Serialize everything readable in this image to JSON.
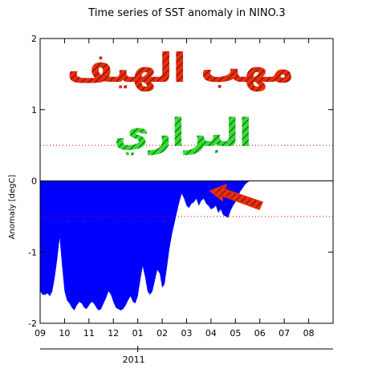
{
  "chart_data": {
    "type": "area",
    "title": "Time series of SST anomaly in NINO.3",
    "ylabel": "Anomaly [degC]",
    "xlabel": "",
    "year_label": "2011",
    "ylim": [
      -2,
      2
    ],
    "yticks": [
      -2,
      -1,
      0,
      1,
      2
    ],
    "month_ticks": [
      "09",
      "10",
      "11",
      "12",
      "01",
      "02",
      "03",
      "04",
      "05",
      "06",
      "07",
      "08"
    ],
    "threshold_lines": [
      0.5,
      -0.5
    ],
    "grid": false,
    "series": [
      {
        "x": [
          0.0,
          0.1,
          0.2,
          0.3,
          0.4,
          0.5,
          0.6,
          0.7,
          0.8,
          0.9,
          1.0,
          1.1,
          1.2,
          1.3,
          1.4,
          1.5,
          1.6,
          1.7,
          1.8,
          1.9,
          2.0,
          2.1,
          2.2,
          2.3,
          2.4,
          2.5,
          2.6,
          2.7,
          2.8,
          2.9,
          3.0,
          3.1,
          3.2,
          3.3,
          3.4,
          3.5,
          3.6,
          3.7,
          3.8,
          3.9,
          4.0,
          4.1,
          4.2,
          4.3,
          4.4,
          4.5,
          4.6,
          4.7,
          4.8,
          4.9,
          5.0,
          5.1,
          5.2,
          5.3,
          5.4,
          5.5,
          5.6,
          5.7,
          5.8,
          5.9,
          6.0,
          6.1,
          6.2,
          6.3,
          6.4,
          6.5,
          6.6,
          6.7,
          6.8,
          6.9,
          7.0,
          7.1,
          7.2,
          7.3,
          7.4,
          7.5,
          7.6,
          7.7,
          7.8,
          7.9,
          8.0,
          8.1,
          8.2,
          8.3,
          8.4,
          8.5,
          8.6
        ],
        "values": [
          -1.55,
          -1.6,
          -1.6,
          -1.58,
          -1.62,
          -1.55,
          -1.35,
          -1.1,
          -0.8,
          -1.2,
          -1.55,
          -1.68,
          -1.72,
          -1.78,
          -1.82,
          -1.75,
          -1.7,
          -1.72,
          -1.78,
          -1.8,
          -1.75,
          -1.7,
          -1.72,
          -1.78,
          -1.82,
          -1.8,
          -1.72,
          -1.65,
          -1.55,
          -1.6,
          -1.7,
          -1.78,
          -1.8,
          -1.82,
          -1.8,
          -1.75,
          -1.68,
          -1.62,
          -1.7,
          -1.72,
          -1.62,
          -1.4,
          -1.2,
          -1.35,
          -1.55,
          -1.6,
          -1.55,
          -1.4,
          -1.25,
          -1.3,
          -1.5,
          -1.45,
          -1.2,
          -0.95,
          -0.75,
          -0.6,
          -0.45,
          -0.3,
          -0.18,
          -0.25,
          -0.35,
          -0.38,
          -0.32,
          -0.3,
          -0.25,
          -0.35,
          -0.28,
          -0.25,
          -0.32,
          -0.35,
          -0.4,
          -0.38,
          -0.35,
          -0.45,
          -0.4,
          -0.48,
          -0.5,
          -0.52,
          -0.42,
          -0.35,
          -0.3,
          -0.22,
          -0.15,
          -0.1,
          -0.05,
          -0.02,
          0.0
        ],
        "color": "#0000ff"
      }
    ],
    "annotation_colors": {
      "text1": "#ee2b0a",
      "text2": "#33dd33",
      "arrow": "#ee2b0a",
      "threshold": "#cc0000"
    }
  },
  "overlay": {
    "text1": "مهب الهيف",
    "text2": "البراري"
  }
}
